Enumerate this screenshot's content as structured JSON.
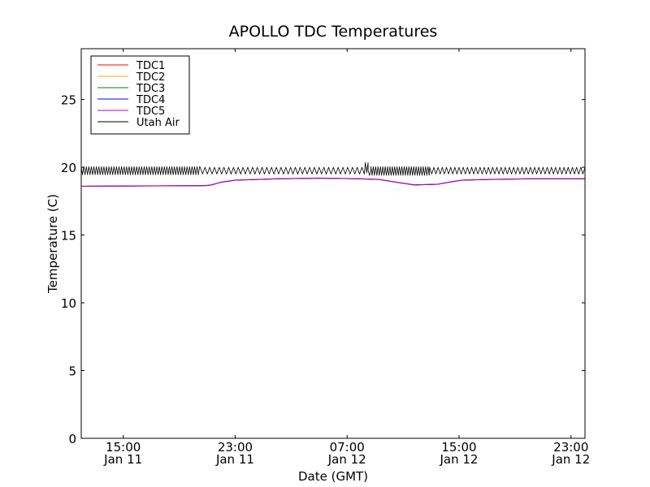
{
  "chart_data": {
    "type": "line",
    "title": "APOLLO TDC Temperatures",
    "xlabel": "Date (GMT)",
    "ylabel": "Temperature (C)",
    "ylim": [
      0,
      28.75
    ],
    "xlim_hours": [
      0,
      36
    ],
    "yticks": [
      0,
      5,
      10,
      15,
      20,
      25
    ],
    "xticks": [
      {
        "hour": 3,
        "time": "15:00",
        "date": "Jan 11"
      },
      {
        "hour": 11,
        "time": "23:00",
        "date": "Jan 11"
      },
      {
        "hour": 19,
        "time": "07:00",
        "date": "Jan 12"
      },
      {
        "hour": 27,
        "time": "15:00",
        "date": "Jan 12"
      },
      {
        "hour": 35,
        "time": "23:00",
        "date": "Jan 12"
      }
    ],
    "legend_position": "top-left",
    "series": [
      {
        "name": "TDC1",
        "color": "#ff0000",
        "offset": -0.05,
        "points": [
          [
            0,
            18.6
          ],
          [
            8.9,
            18.65
          ],
          [
            9.3,
            18.7
          ],
          [
            10.0,
            18.9
          ],
          [
            11.0,
            19.05
          ],
          [
            12.5,
            19.1
          ],
          [
            14,
            19.15
          ],
          [
            17,
            19.2
          ],
          [
            20,
            19.15
          ],
          [
            21.3,
            19.1
          ],
          [
            22.5,
            18.9
          ],
          [
            23.8,
            18.7
          ],
          [
            25.5,
            18.75
          ],
          [
            26.3,
            18.9
          ],
          [
            27.2,
            19.05
          ],
          [
            29,
            19.1
          ],
          [
            32,
            19.15
          ],
          [
            36,
            19.15
          ]
        ]
      },
      {
        "name": "TDC2",
        "color": "#ffaa00",
        "offset": -0.1,
        "points": [
          [
            0,
            18.6
          ],
          [
            8.9,
            18.65
          ],
          [
            9.3,
            18.7
          ],
          [
            10.0,
            18.9
          ],
          [
            11.0,
            19.05
          ],
          [
            12.5,
            19.1
          ],
          [
            14,
            19.15
          ],
          [
            17,
            19.2
          ],
          [
            20,
            19.15
          ],
          [
            21.3,
            19.1
          ],
          [
            22.5,
            18.9
          ],
          [
            23.8,
            18.7
          ],
          [
            25.5,
            18.75
          ],
          [
            26.3,
            18.9
          ],
          [
            27.2,
            19.05
          ],
          [
            29,
            19.1
          ],
          [
            32,
            19.15
          ],
          [
            36,
            19.15
          ]
        ]
      },
      {
        "name": "TDC3",
        "color": "#008000",
        "offset": 0.0,
        "points": [
          [
            0,
            18.6
          ],
          [
            8.9,
            18.65
          ],
          [
            9.3,
            18.7
          ],
          [
            10.0,
            18.9
          ],
          [
            11.0,
            19.05
          ],
          [
            12.5,
            19.1
          ],
          [
            14,
            19.15
          ],
          [
            17,
            19.2
          ],
          [
            20,
            19.15
          ],
          [
            21.3,
            19.1
          ],
          [
            22.5,
            18.9
          ],
          [
            23.8,
            18.7
          ],
          [
            25.5,
            18.75
          ],
          [
            26.3,
            18.9
          ],
          [
            27.2,
            19.05
          ],
          [
            29,
            19.1
          ],
          [
            32,
            19.15
          ],
          [
            36,
            19.15
          ]
        ]
      },
      {
        "name": "TDC4",
        "color": "#0000ff",
        "offset": 0.1,
        "points": [
          [
            0,
            18.6
          ],
          [
            8.9,
            18.65
          ],
          [
            9.3,
            18.7
          ],
          [
            10.0,
            18.9
          ],
          [
            11.0,
            19.05
          ],
          [
            12.5,
            19.1
          ],
          [
            14,
            19.15
          ],
          [
            17,
            19.2
          ],
          [
            20,
            19.15
          ],
          [
            21.3,
            19.1
          ],
          [
            22.5,
            18.9
          ],
          [
            23.8,
            18.7
          ],
          [
            25.5,
            18.75
          ],
          [
            26.3,
            18.9
          ],
          [
            27.2,
            19.05
          ],
          [
            29,
            19.1
          ],
          [
            32,
            19.15
          ],
          [
            36,
            19.15
          ]
        ]
      },
      {
        "name": "TDC5",
        "color": "#bf00bf",
        "offset": 0.05,
        "points": [
          [
            0,
            18.6
          ],
          [
            8.9,
            18.65
          ],
          [
            9.3,
            18.7
          ],
          [
            10.0,
            18.9
          ],
          [
            11.0,
            19.05
          ],
          [
            12.5,
            19.1
          ],
          [
            14,
            19.15
          ],
          [
            17,
            19.2
          ],
          [
            20,
            19.15
          ],
          [
            21.3,
            19.1
          ],
          [
            22.5,
            18.9
          ],
          [
            23.8,
            18.7
          ],
          [
            25.5,
            18.75
          ],
          [
            26.3,
            18.9
          ],
          [
            27.2,
            19.05
          ],
          [
            29,
            19.1
          ],
          [
            32,
            19.15
          ],
          [
            36,
            19.15
          ]
        ]
      },
      {
        "name": "Utah Air",
        "color": "#000000",
        "oscillation": [
          {
            "start": 0,
            "end": 8.5,
            "low": 19.45,
            "high": 20.05,
            "period_hours": 0.18
          },
          {
            "start": 8.5,
            "end": 20.3,
            "low": 19.5,
            "high": 20.0,
            "period_hours": 0.34
          },
          {
            "start": 20.3,
            "end": 20.5,
            "low": 19.6,
            "high": 20.35,
            "period_hours": 0.2
          },
          {
            "start": 20.5,
            "end": 20.7,
            "low": 19.4,
            "high": 19.8,
            "period_hours": 0.2
          },
          {
            "start": 20.7,
            "end": 24.9,
            "low": 19.4,
            "high": 20.05,
            "period_hours": 0.17
          },
          {
            "start": 24.9,
            "end": 36,
            "low": 19.5,
            "high": 20.0,
            "period_hours": 0.3
          }
        ]
      }
    ]
  }
}
